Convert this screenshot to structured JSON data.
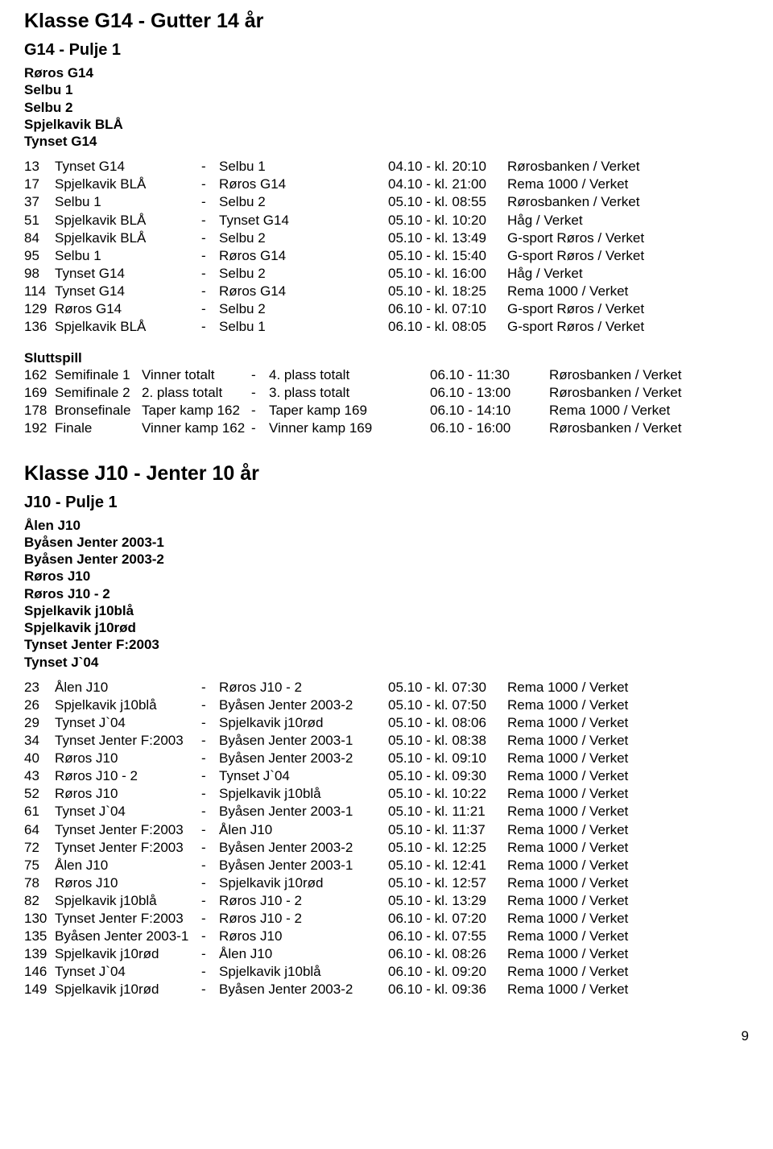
{
  "klasseG14": {
    "title": "Klasse G14 - Gutter 14 år",
    "pulje": "G14 - Pulje 1",
    "teams": [
      "Røros G14",
      "Selbu 1",
      "Selbu 2",
      "Spjelkavik BLÅ",
      "Tynset G14"
    ],
    "matches": [
      {
        "n": "13",
        "a": "Tynset G14",
        "b": "Selbu 1",
        "t": "04.10 - kl. 20:10",
        "v": "Rørosbanken / Verket"
      },
      {
        "n": "17",
        "a": "Spjelkavik BLÅ",
        "b": "Røros G14",
        "t": "04.10 - kl. 21:00",
        "v": "Rema 1000 / Verket"
      },
      {
        "n": "37",
        "a": "Selbu 1",
        "b": "Selbu 2",
        "t": "05.10 - kl. 08:55",
        "v": "Rørosbanken / Verket"
      },
      {
        "n": "51",
        "a": "Spjelkavik BLÅ",
        "b": "Tynset G14",
        "t": "05.10 - kl. 10:20",
        "v": "Håg / Verket"
      },
      {
        "n": "84",
        "a": "Spjelkavik BLÅ",
        "b": "Selbu 2",
        "t": "05.10 - kl. 13:49",
        "v": "G-sport Røros / Verket"
      },
      {
        "n": "95",
        "a": "Selbu 1",
        "b": "Røros G14",
        "t": "05.10 - kl. 15:40",
        "v": "G-sport Røros / Verket"
      },
      {
        "n": "98",
        "a": "Tynset G14",
        "b": "Selbu 2",
        "t": "05.10 - kl. 16:00",
        "v": "Håg / Verket"
      },
      {
        "n": "114",
        "a": "Tynset G14",
        "b": "Røros G14",
        "t": "05.10 - kl. 18:25",
        "v": "Rema 1000 / Verket"
      },
      {
        "n": "129",
        "a": "Røros G14",
        "b": "Selbu 2",
        "t": "06.10 - kl. 07:10",
        "v": "G-sport Røros / Verket"
      },
      {
        "n": "136",
        "a": "Spjelkavik BLÅ",
        "b": "Selbu 1",
        "t": "06.10 - kl. 08:05",
        "v": "G-sport Røros / Verket"
      }
    ],
    "sluttspillTitle": "Sluttspill",
    "sluttspill": [
      {
        "n": "162",
        "l": "Semifinale 1",
        "a": "Vinner totalt",
        "b": "4. plass totalt",
        "t": "06.10 - 11:30",
        "v": "Rørosbanken / Verket"
      },
      {
        "n": "169",
        "l": "Semifinale 2",
        "a": "2. plass totalt",
        "b": "3. plass totalt",
        "t": "06.10 - 13:00",
        "v": "Rørosbanken / Verket"
      },
      {
        "n": "178",
        "l": "Bronsefinale",
        "a": "Taper kamp 162",
        "b": "Taper kamp 169",
        "t": "06.10 - 14:10",
        "v": "Rema 1000 / Verket"
      },
      {
        "n": "192",
        "l": "Finale",
        "a": "Vinner kamp 162",
        "b": "Vinner kamp 169",
        "t": "06.10 - 16:00",
        "v": "Rørosbanken / Verket"
      }
    ]
  },
  "klasseJ10": {
    "title": "Klasse J10 - Jenter 10 år",
    "pulje": "J10 - Pulje 1",
    "teams": [
      "Ålen J10",
      "Byåsen Jenter 2003-1",
      "Byåsen Jenter 2003-2",
      "Røros J10",
      "Røros J10 - 2",
      "Spjelkavik j10blå",
      "Spjelkavik j10rød",
      "Tynset Jenter F:2003",
      "Tynset J`04"
    ],
    "matches": [
      {
        "n": "23",
        "a": "Ålen J10",
        "b": "Røros J10 - 2",
        "t": "05.10 - kl. 07:30",
        "v": "Rema 1000 / Verket"
      },
      {
        "n": "26",
        "a": "Spjelkavik j10blå",
        "b": "Byåsen Jenter 2003-2",
        "t": "05.10 - kl. 07:50",
        "v": "Rema 1000 / Verket"
      },
      {
        "n": "29",
        "a": "Tynset J`04",
        "b": "Spjelkavik j10rød",
        "t": "05.10 - kl. 08:06",
        "v": "Rema 1000 / Verket"
      },
      {
        "n": "34",
        "a": "Tynset Jenter F:2003",
        "b": "Byåsen Jenter 2003-1",
        "t": "05.10 - kl. 08:38",
        "v": "Rema 1000 / Verket"
      },
      {
        "n": "40",
        "a": "Røros J10",
        "b": "Byåsen Jenter 2003-2",
        "t": "05.10 - kl. 09:10",
        "v": "Rema 1000 / Verket"
      },
      {
        "n": "43",
        "a": "Røros J10 - 2",
        "b": "Tynset J`04",
        "t": "05.10 - kl. 09:30",
        "v": "Rema 1000 / Verket"
      },
      {
        "n": "52",
        "a": "Røros J10",
        "b": "Spjelkavik j10blå",
        "t": "05.10 - kl. 10:22",
        "v": "Rema 1000 / Verket"
      },
      {
        "n": "61",
        "a": "Tynset J`04",
        "b": "Byåsen Jenter 2003-1",
        "t": "05.10 - kl. 11:21",
        "v": "Rema 1000 / Verket"
      },
      {
        "n": "64",
        "a": "Tynset Jenter F:2003",
        "b": "Ålen J10",
        "t": "05.10 - kl. 11:37",
        "v": "Rema 1000 / Verket"
      },
      {
        "n": "72",
        "a": "Tynset Jenter F:2003",
        "b": "Byåsen Jenter 2003-2",
        "t": "05.10 - kl. 12:25",
        "v": "Rema 1000 / Verket"
      },
      {
        "n": "75",
        "a": "Ålen J10",
        "b": "Byåsen Jenter 2003-1",
        "t": "05.10 - kl. 12:41",
        "v": "Rema 1000 / Verket"
      },
      {
        "n": "78",
        "a": "Røros J10",
        "b": "Spjelkavik j10rød",
        "t": "05.10 - kl. 12:57",
        "v": "Rema 1000 / Verket"
      },
      {
        "n": "82",
        "a": "Spjelkavik j10blå",
        "b": "Røros J10 - 2",
        "t": "05.10 - kl. 13:29",
        "v": "Rema 1000 / Verket"
      },
      {
        "n": "130",
        "a": "Tynset Jenter F:2003",
        "b": "Røros J10 - 2",
        "t": "06.10 - kl. 07:20",
        "v": "Rema 1000 / Verket"
      },
      {
        "n": "135",
        "a": "Byåsen Jenter 2003-1",
        "b": "Røros J10",
        "t": "06.10 - kl. 07:55",
        "v": "Rema 1000 / Verket"
      },
      {
        "n": "139",
        "a": "Spjelkavik j10rød",
        "b": "Ålen J10",
        "t": "06.10 - kl. 08:26",
        "v": "Rema 1000 / Verket"
      },
      {
        "n": "146",
        "a": "Tynset J`04",
        "b": "Spjelkavik j10blå",
        "t": "06.10 - kl. 09:20",
        "v": "Rema 1000 / Verket"
      },
      {
        "n": "149",
        "a": "Spjelkavik j10rød",
        "b": "Byåsen Jenter 2003-2",
        "t": "06.10 - kl. 09:36",
        "v": "Rema 1000 / Verket"
      }
    ]
  },
  "pageNumber": "9"
}
